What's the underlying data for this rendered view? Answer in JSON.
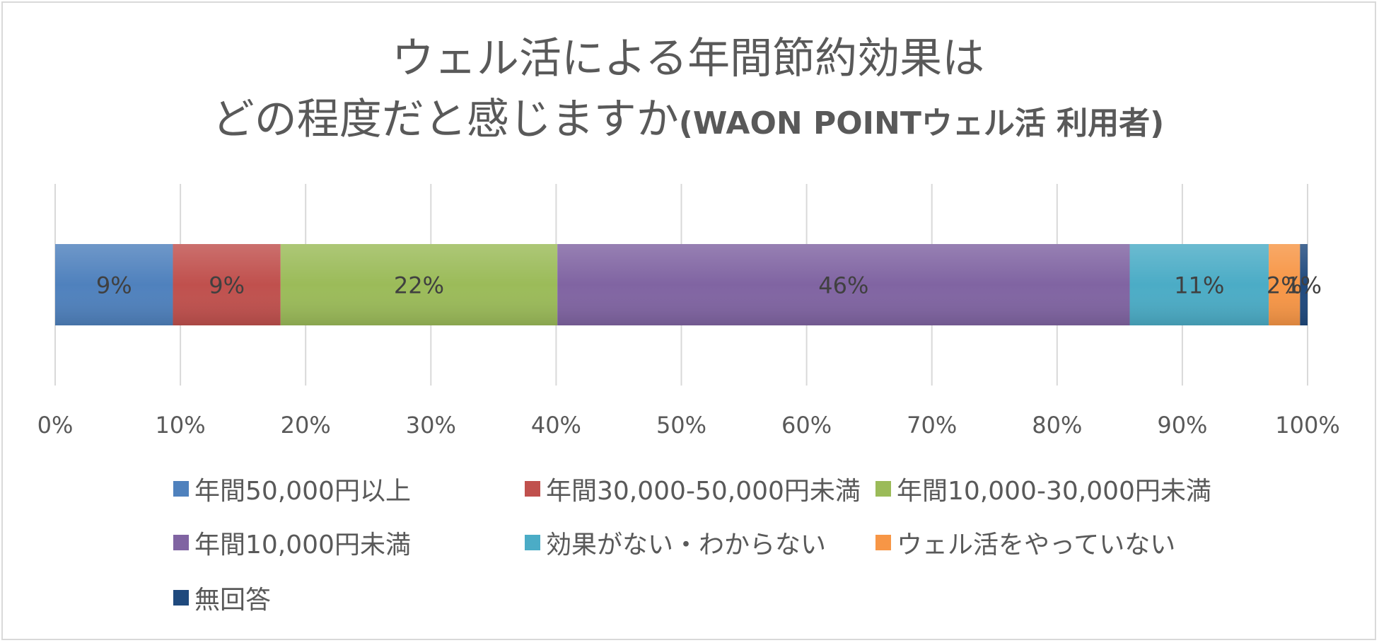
{
  "chart_data": {
    "type": "bar",
    "orientation": "horizontal",
    "stacked": true,
    "title": "ウェル活による年間節約効果は",
    "title_line2": "どの程度だと感じますか",
    "title_suffix": "(WAON POINTウェル活 利用者)",
    "xlim": [
      0,
      100
    ],
    "x_ticks": [
      "0%",
      "10%",
      "20%",
      "30%",
      "40%",
      "50%",
      "60%",
      "70%",
      "80%",
      "90%",
      "100%"
    ],
    "grid": true,
    "legend_position": "bottom",
    "series": [
      {
        "name": "年間50,000円以上",
        "value": 9.4,
        "label": "9%",
        "color": "#4f81bd"
      },
      {
        "name": "年間30,000-50,000円未満",
        "value": 8.6,
        "label": "9%",
        "color": "#c0504d"
      },
      {
        "name": "年間10,000-30,000円未満",
        "value": 22.1,
        "label": "22%",
        "color": "#9bbb59"
      },
      {
        "name": "年間10,000円未満",
        "value": 45.7,
        "label": "46%",
        "color": "#8064a2"
      },
      {
        "name": "効果がない・わからない",
        "value": 11.1,
        "label": "11%",
        "color": "#4bacc6"
      },
      {
        "name": "ウェル活をやっていない",
        "value": 2.5,
        "label": "2%",
        "color": "#f79646"
      },
      {
        "name": "無回答",
        "value": 0.6,
        "label": "1%",
        "color": "#1f497d"
      }
    ]
  }
}
